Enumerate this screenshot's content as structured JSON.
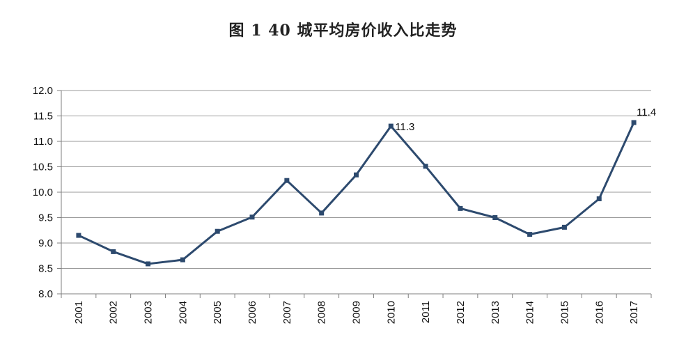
{
  "title": "图 1    40 城平均房价收入比走势",
  "colors": {
    "line": "#2d4a6e",
    "grid": "#9a9a9a",
    "axis": "#7f7f7f"
  },
  "chart_data": {
    "type": "line",
    "title": "图 1    40 城平均房价收入比走势",
    "xlabel": "",
    "ylabel": "",
    "categories": [
      "2001",
      "2002",
      "2003",
      "2004",
      "2005",
      "2006",
      "2007",
      "2008",
      "2009",
      "2010",
      "2011",
      "2012",
      "2013",
      "2014",
      "2015",
      "2016",
      "2017"
    ],
    "series": [
      {
        "values": [
          9.15,
          8.83,
          8.59,
          8.67,
          9.23,
          9.51,
          10.23,
          9.59,
          10.34,
          11.3,
          10.51,
          9.68,
          9.5,
          9.17,
          9.31,
          9.87,
          11.37
        ]
      }
    ],
    "ylim": [
      8.0,
      12.0
    ],
    "y_ticks": [
      "8.0",
      "8.5",
      "9.0",
      "9.5",
      "10.0",
      "10.5",
      "11.0",
      "11.5",
      "12.0"
    ],
    "grid": true,
    "legend": "none",
    "annotations": [
      {
        "index": 9,
        "text": "11.3"
      },
      {
        "index": 16,
        "text": "11.4"
      }
    ]
  }
}
